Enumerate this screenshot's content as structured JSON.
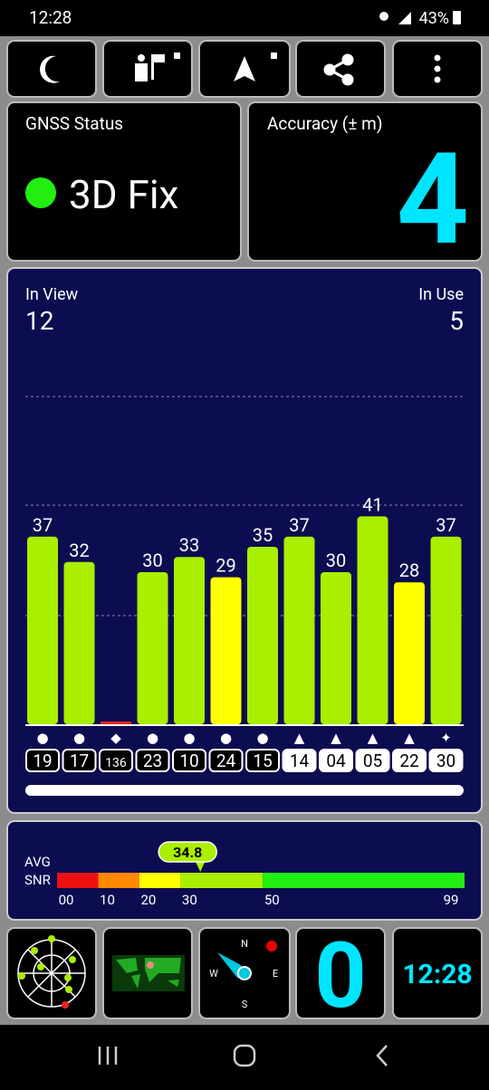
{
  "status_bar": {
    "time": "12:28",
    "battery": "43%"
  },
  "gnss_status": {
    "title": "GNSS Status",
    "fix": "3D Fix"
  },
  "accuracy": {
    "title": "Accuracy (± m)",
    "value": 4
  },
  "satellites": {
    "in_view_label": "In View",
    "in_view": 12,
    "in_use_label": "In Use",
    "in_use": 5
  },
  "chart_data": {
    "type": "bar",
    "categories": [
      "19",
      "17",
      "136",
      "23",
      "10",
      "24",
      "15",
      "14",
      "04",
      "05",
      "22",
      "30"
    ],
    "values": [
      37,
      32,
      0,
      30,
      33,
      29,
      35,
      37,
      30,
      41,
      28,
      37
    ],
    "colors": [
      "#aaee00",
      "#aaee00",
      "#ee2222",
      "#aaee00",
      "#aaee00",
      "#ffff00",
      "#aaee00",
      "#aaee00",
      "#aaee00",
      "#aaee00",
      "#ffff00",
      "#aaee00"
    ],
    "markers": [
      "●",
      "●",
      "◆",
      "●",
      "●",
      "●",
      "●",
      "▲",
      "▲",
      "▲",
      "▲",
      "✦"
    ],
    "used": [
      false,
      false,
      false,
      false,
      false,
      false,
      false,
      true,
      true,
      true,
      true,
      true
    ],
    "ylim": [
      0,
      75
    ]
  },
  "snr": {
    "avg_label": "AVG",
    "snr_label": "SNR",
    "avg": 34.8,
    "xlim": [
      0,
      99
    ],
    "ticks": [
      {
        "value": 0,
        "label": "00"
      },
      10,
      20,
      30,
      50,
      99
    ],
    "colors": [
      "#ee1111",
      "#ff8800",
      "#ffff00",
      "#aaee00",
      "#22ee11"
    ]
  },
  "bottom": {
    "fix_count": 0,
    "clock": "12:28"
  }
}
